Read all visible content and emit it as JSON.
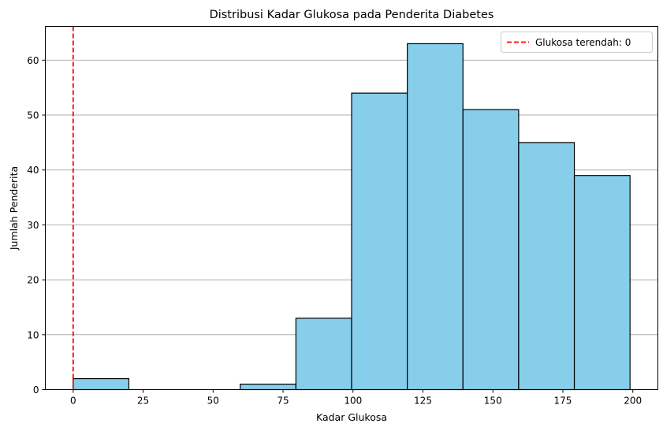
{
  "chart_data": {
    "type": "bar",
    "title": "Distribusi Kadar Glukosa pada Penderita Diabetes",
    "xlabel": "Kadar Glukosa",
    "ylabel": "Jumlah Penderita",
    "bins": [
      {
        "start": 0,
        "end": 19.9,
        "count": 2
      },
      {
        "start": 19.9,
        "end": 39.8,
        "count": 0
      },
      {
        "start": 39.8,
        "end": 59.7,
        "count": 0
      },
      {
        "start": 59.7,
        "end": 79.6,
        "count": 1
      },
      {
        "start": 79.6,
        "end": 99.5,
        "count": 13
      },
      {
        "start": 99.5,
        "end": 119.4,
        "count": 54
      },
      {
        "start": 119.4,
        "end": 139.3,
        "count": 63
      },
      {
        "start": 139.3,
        "end": 159.2,
        "count": 51
      },
      {
        "start": 159.2,
        "end": 179.1,
        "count": 45
      },
      {
        "start": 179.1,
        "end": 199,
        "count": 39
      }
    ],
    "xlim": [
      -9.95,
      208.95
    ],
    "ylim": [
      0,
      66.15
    ],
    "xticks": [
      0,
      25,
      50,
      75,
      100,
      125,
      150,
      175,
      200
    ],
    "yticks": [
      0,
      10,
      20,
      30,
      40,
      50,
      60
    ],
    "grid": "y-axis",
    "vline": {
      "x": 0,
      "label": "Glukosa terendah: 0",
      "color": "#ff0000",
      "style": "dashed"
    },
    "legend_position": "top-right",
    "colors": {
      "bar_fill": "#87ceeb",
      "bar_edge": "#000000",
      "grid": "#b0b0b0"
    }
  }
}
